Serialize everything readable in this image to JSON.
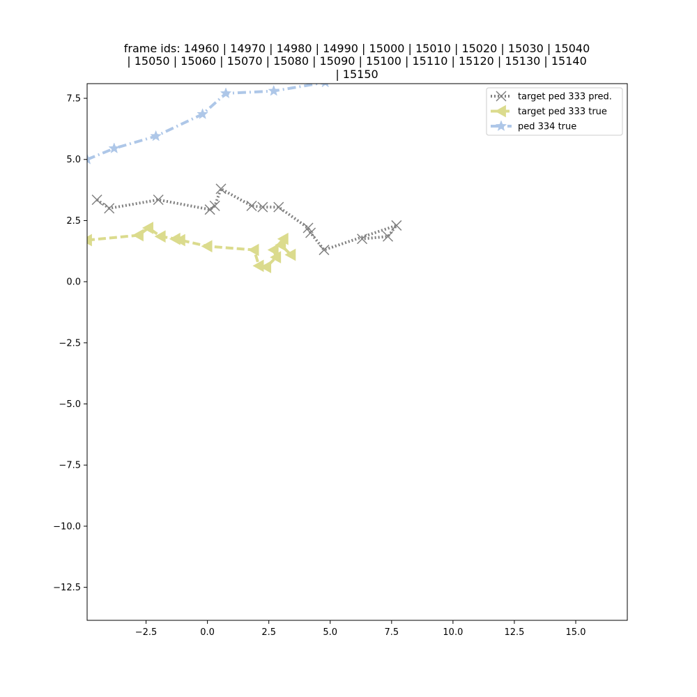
{
  "chart_data": {
    "type": "line",
    "title_lines": [
      "frame ids: 14960 | 14970 | 14980 | 14990 | 15000 | 15010 | 15020 | 15030 | 15040",
      "| 15050 | 15060 | 15070 | 15080 | 15090 | 15100 | 15110 | 15120 | 15130 | 15140",
      "| 15150"
    ],
    "xlabel": "",
    "ylabel": "",
    "xlim": [
      -4.9,
      17.1
    ],
    "ylim": [
      -13.85,
      8.1
    ],
    "x_ticks": [
      -2.5,
      0.0,
      2.5,
      5.0,
      7.5,
      10.0,
      12.5,
      15.0
    ],
    "x_tick_labels": [
      "−2.5",
      "0.0",
      "2.5",
      "5.0",
      "7.5",
      "10.0",
      "12.5",
      "15.0"
    ],
    "y_ticks": [
      7.5,
      5.0,
      2.5,
      0.0,
      -2.5,
      -5.0,
      -7.5,
      -10.0,
      -12.5
    ],
    "y_tick_labels": [
      "7.5",
      "5.0",
      "2.5",
      "0.0",
      "−2.5",
      "−5.0",
      "−7.5",
      "−10.0",
      "−12.5"
    ],
    "grid": false,
    "legend_position": "top-right",
    "series": [
      {
        "name": "target ped 333 pred.",
        "color": "#808080",
        "line_style": "dotted",
        "marker": "x",
        "points": [
          [
            -4.5,
            3.35
          ],
          [
            -4.0,
            3.0
          ],
          [
            -2.0,
            3.35
          ],
          [
            0.1,
            2.95
          ],
          [
            0.3,
            3.1
          ],
          [
            0.55,
            3.8
          ],
          [
            1.8,
            3.1
          ],
          [
            2.25,
            3.05
          ],
          [
            2.9,
            3.05
          ],
          [
            4.1,
            2.2
          ],
          [
            4.2,
            2.0
          ],
          [
            4.75,
            1.3
          ],
          [
            7.7,
            2.3
          ],
          [
            7.35,
            1.85
          ],
          [
            6.3,
            1.75
          ]
        ]
      },
      {
        "name": "target ped 333 true",
        "color": "#dbdb8d",
        "line_style": "dashed",
        "marker": "triangle-left",
        "points": [
          [
            -4.9,
            1.7
          ],
          [
            -2.8,
            1.9
          ],
          [
            -2.4,
            2.2
          ],
          [
            -1.9,
            1.85
          ],
          [
            -1.3,
            1.75
          ],
          [
            -1.1,
            1.7
          ],
          [
            0.0,
            1.45
          ],
          [
            1.9,
            1.3
          ],
          [
            2.1,
            0.65
          ],
          [
            2.4,
            0.6
          ],
          [
            2.8,
            1.0
          ],
          [
            2.7,
            1.3
          ],
          [
            3.1,
            1.75
          ],
          [
            3.0,
            1.5
          ],
          [
            3.4,
            1.1
          ]
        ]
      },
      {
        "name": "ped 334 true",
        "color": "#aec7e8",
        "line_style": "dashdot",
        "marker": "star",
        "points": [
          [
            -4.9,
            5.0
          ],
          [
            -3.8,
            5.45
          ],
          [
            -2.1,
            5.95
          ],
          [
            -0.2,
            6.85
          ],
          [
            0.75,
            7.7
          ],
          [
            2.7,
            7.8
          ],
          [
            4.8,
            8.15
          ]
        ]
      }
    ]
  }
}
